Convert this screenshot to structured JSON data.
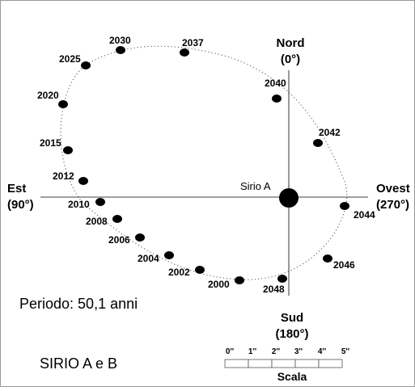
{
  "directions": {
    "north": {
      "name": "Nord",
      "angle": "(0°)"
    },
    "east": {
      "name": "Est",
      "angle": "(90°)"
    },
    "south": {
      "name": "Sud",
      "angle": "(180°)"
    },
    "west": {
      "name": "Ovest",
      "angle": "(270°)"
    }
  },
  "primary_label": "Sirio A",
  "period_label": "Periodo: 50,1 anni",
  "system_title": "SIRIO A e B",
  "scale": {
    "title": "Scala",
    "ticks": [
      "0''",
      "1''",
      "2''",
      "3''",
      "4''",
      "5''"
    ]
  },
  "orbit_positions": [
    {
      "year": "2000"
    },
    {
      "year": "2002"
    },
    {
      "year": "2004"
    },
    {
      "year": "2006"
    },
    {
      "year": "2008"
    },
    {
      "year": "2010"
    },
    {
      "year": "2012"
    },
    {
      "year": "2015"
    },
    {
      "year": "2020"
    },
    {
      "year": "2025"
    },
    {
      "year": "2030"
    },
    {
      "year": "2037"
    },
    {
      "year": "2040"
    },
    {
      "year": "2042"
    },
    {
      "year": "2044"
    },
    {
      "year": "2046"
    },
    {
      "year": "2048"
    }
  ]
}
